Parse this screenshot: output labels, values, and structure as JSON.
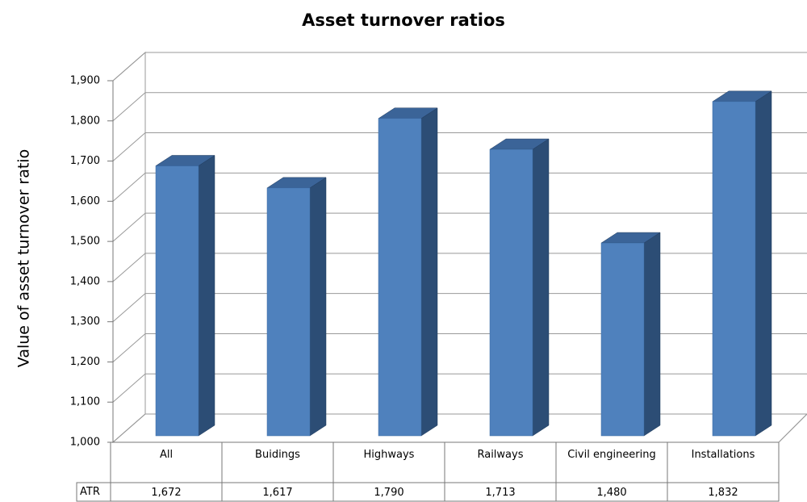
{
  "chart_data": {
    "type": "bar3d",
    "title": "Asset turnover ratios",
    "y_label": "Value of asset turnover ratio",
    "categories": [
      "All",
      "Buidings",
      "Highways",
      "Railways",
      "Civil engineering",
      "Installations"
    ],
    "series_label": "ATR",
    "values": [
      1672,
      1617,
      1790,
      1713,
      1480,
      1832
    ],
    "value_labels": [
      "1,672",
      "1,617",
      "1,790",
      "1,713",
      "1,480",
      "1,832"
    ],
    "color": "#4f81bd",
    "ylim": [
      1000,
      1900
    ],
    "yticks": [
      {
        "value": 1000,
        "label": "1,000"
      },
      {
        "value": 1100,
        "label": "1,100"
      },
      {
        "value": 1200,
        "label": "1,200"
      },
      {
        "value": 1300,
        "label": "1,300"
      },
      {
        "value": 1400,
        "label": "1,400"
      },
      {
        "value": 1500,
        "label": "1,500"
      },
      {
        "value": 1600,
        "label": "1,600"
      },
      {
        "value": 1700,
        "label": "1,700"
      },
      {
        "value": 1800,
        "label": "1,800"
      },
      {
        "value": 1900,
        "label": "1,900"
      }
    ],
    "grid": true
  }
}
